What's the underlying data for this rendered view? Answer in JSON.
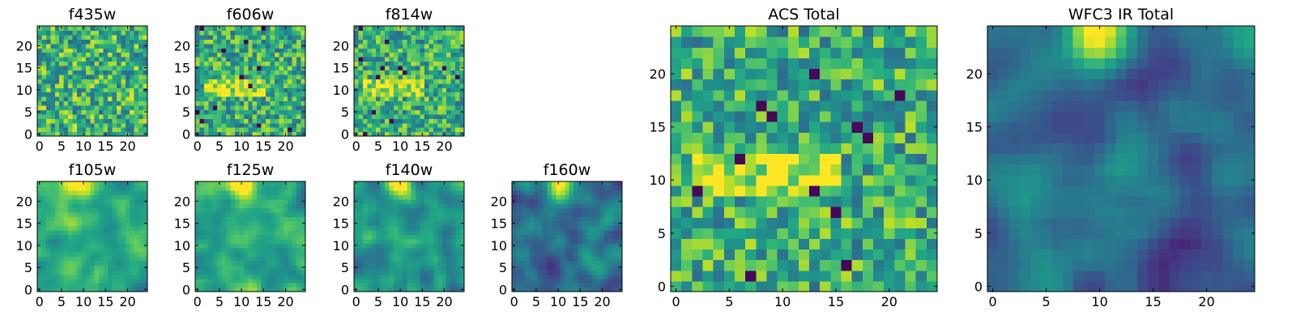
{
  "figure": {
    "description_free": true
  },
  "chart_data": [
    {
      "type": "heatmap",
      "title": "f435w",
      "grid": [
        25,
        25
      ],
      "colormap": "viridis",
      "x_ticks": [
        0,
        5,
        10,
        15,
        20
      ],
      "y_ticks": [
        0,
        5,
        10,
        15,
        20
      ],
      "xlim": [
        0,
        24
      ],
      "ylim": [
        0,
        24
      ],
      "seed": 11,
      "pattern": "noise_uniform"
    },
    {
      "type": "heatmap",
      "title": "f606w",
      "grid": [
        25,
        25
      ],
      "colormap": "viridis",
      "x_ticks": [
        0,
        5,
        10,
        15,
        20
      ],
      "y_ticks": [
        0,
        5,
        10,
        15,
        20
      ],
      "xlim": [
        0,
        24
      ],
      "ylim": [
        0,
        24
      ],
      "seed": 23,
      "pattern": "noise_band"
    },
    {
      "type": "heatmap",
      "title": "f814w",
      "grid": [
        25,
        25
      ],
      "colormap": "viridis",
      "x_ticks": [
        0,
        5,
        10,
        15,
        20
      ],
      "y_ticks": [
        0,
        5,
        10,
        15,
        20
      ],
      "xlim": [
        0,
        24
      ],
      "ylim": [
        0,
        24
      ],
      "seed": 37,
      "pattern": "noise_band"
    },
    {
      "type": "heatmap",
      "title": "f105w",
      "grid": [
        25,
        25
      ],
      "colormap": "viridis",
      "x_ticks": [
        0,
        5,
        10,
        15,
        20
      ],
      "y_ticks": [
        0,
        5,
        10,
        15,
        20
      ],
      "xlim": [
        0,
        24
      ],
      "ylim": [
        0,
        24
      ],
      "seed": 41,
      "pattern": "smooth_top"
    },
    {
      "type": "heatmap",
      "title": "f125w",
      "grid": [
        25,
        25
      ],
      "colormap": "viridis",
      "x_ticks": [
        0,
        5,
        10,
        15,
        20
      ],
      "y_ticks": [
        0,
        5,
        10,
        15,
        20
      ],
      "xlim": [
        0,
        24
      ],
      "ylim": [
        0,
        24
      ],
      "seed": 53,
      "pattern": "smooth_top"
    },
    {
      "type": "heatmap",
      "title": "f140w",
      "grid": [
        25,
        25
      ],
      "colormap": "viridis",
      "x_ticks": [
        0,
        5,
        10,
        15,
        20
      ],
      "y_ticks": [
        0,
        5,
        10,
        15,
        20
      ],
      "xlim": [
        0,
        24
      ],
      "ylim": [
        0,
        24
      ],
      "seed": 67,
      "pattern": "smooth_top_dark"
    },
    {
      "type": "heatmap",
      "title": "f160w",
      "grid": [
        25,
        25
      ],
      "colormap": "viridis",
      "x_ticks": [
        0,
        5,
        10,
        15,
        20
      ],
      "y_ticks": [
        0,
        5,
        10,
        15,
        20
      ],
      "xlim": [
        0,
        24
      ],
      "ylim": [
        0,
        24
      ],
      "seed": 79,
      "pattern": "smooth_top_darker"
    },
    {
      "type": "heatmap",
      "title": "ACS Total",
      "grid": [
        25,
        25
      ],
      "colormap": "viridis",
      "x_ticks": [
        0,
        5,
        10,
        15,
        20
      ],
      "y_ticks": [
        0,
        5,
        10,
        15,
        20
      ],
      "xlim": [
        0,
        24
      ],
      "ylim": [
        0,
        24
      ],
      "seed": 97,
      "pattern": "noise_band"
    },
    {
      "type": "heatmap",
      "title": "WFC3 IR Total",
      "grid": [
        25,
        25
      ],
      "colormap": "viridis",
      "x_ticks": [
        0,
        5,
        10,
        15,
        20
      ],
      "y_ticks": [
        0,
        5,
        10,
        15,
        20
      ],
      "xlim": [
        0,
        24
      ],
      "ylim": [
        0,
        24
      ],
      "seed": 101,
      "pattern": "smooth_top_ir"
    }
  ]
}
